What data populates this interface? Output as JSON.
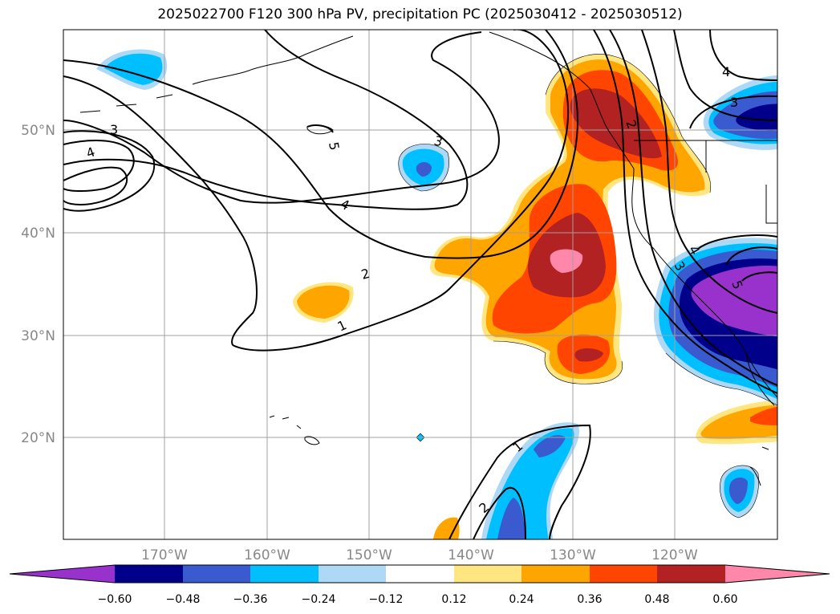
{
  "title": "2025022700 F120 300 hPa PV, precipitation PC (2025030412 - 2025030512)",
  "lat_labels": [
    "50°N",
    "40°N",
    "30°N",
    "20°N"
  ],
  "lon_labels": [
    "170°W",
    "160°W",
    "150°W",
    "140°W",
    "130°W",
    "120°W"
  ],
  "colorbar": {
    "ticks": [
      "−0.60",
      "−0.48",
      "−0.36",
      "−0.24",
      "−0.12",
      "0.12",
      "0.24",
      "0.36",
      "0.48",
      "0.60"
    ],
    "colors": [
      "#9932cc",
      "#00008b",
      "#3a5bd0",
      "#00bfff",
      "#add8f6",
      "#ffffff",
      "#ffe680",
      "#ffa500",
      "#ff4500",
      "#b22222",
      "#ff88aa"
    ]
  },
  "contour_labels": [
    "1",
    "2",
    "3",
    "4",
    "5"
  ]
}
